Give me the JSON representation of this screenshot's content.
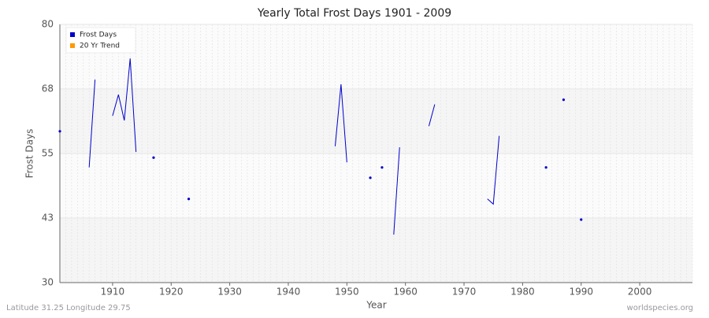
{
  "chart_data": {
    "type": "line",
    "title": "Yearly Total Frost Days 1901 - 2009",
    "x_label": "Year",
    "y_label": "Frost Days",
    "footer_left": "Latitude 31.25 Longitude 29.75",
    "footer_right": "worldspecies.org",
    "xlim": [
      1901,
      2009
    ],
    "xticks": [
      1910,
      1920,
      1930,
      1940,
      1950,
      1960,
      1970,
      1980,
      1990,
      2000
    ],
    "ylim": [
      30,
      80
    ],
    "yticks": [
      30,
      {
        "value": 42.5,
        "label": "43"
      },
      55,
      {
        "value": 67.5,
        "label": "68"
      },
      80
    ],
    "grid": true,
    "legend": "upper left",
    "x": [
      1901,
      1902,
      1903,
      1904,
      1905,
      1906,
      1907,
      1908,
      1909,
      1910,
      1911,
      1912,
      1913,
      1914,
      1915,
      1916,
      1917,
      1918,
      1919,
      1920,
      1921,
      1922,
      1923,
      1924,
      1925,
      1926,
      1927,
      1928,
      1929,
      1930,
      1931,
      1932,
      1933,
      1934,
      1935,
      1936,
      1937,
      1938,
      1939,
      1940,
      1941,
      1942,
      1943,
      1944,
      1945,
      1946,
      1947,
      1948,
      1949,
      1950,
      1951,
      1952,
      1953,
      1954,
      1955,
      1956,
      1957,
      1958,
      1959,
      1960,
      1961,
      1962,
      1963,
      1964,
      1965,
      1966,
      1967,
      1968,
      1969,
      1970,
      1971,
      1972,
      1973,
      1974,
      1975,
      1976,
      1977,
      1978,
      1979,
      1980,
      1981,
      1982,
      1983,
      1984,
      1985,
      1986,
      1987,
      1988,
      1989,
      1990,
      1991,
      1992,
      1993,
      1994,
      1995,
      1996,
      1997,
      1998,
      1999,
      2000,
      2001,
      2002,
      2003,
      2004,
      2005,
      2006,
      2007,
      2008,
      2009
    ],
    "series": [
      {
        "name": "Frost Days",
        "color": "#0000cc",
        "values": [
          59.3,
          null,
          null,
          null,
          null,
          52.3,
          69.3,
          null,
          null,
          62.3,
          66.4,
          61.4,
          73.4,
          55.3,
          null,
          null,
          54.2,
          null,
          null,
          null,
          null,
          null,
          46.2,
          null,
          null,
          null,
          null,
          null,
          null,
          null,
          null,
          null,
          null,
          null,
          null,
          null,
          null,
          null,
          null,
          null,
          null,
          null,
          null,
          null,
          null,
          null,
          null,
          56.4,
          68.4,
          53.3,
          null,
          null,
          null,
          50.3,
          null,
          52.3,
          null,
          39.3,
          56.2,
          null,
          null,
          null,
          null,
          60.3,
          64.5,
          null,
          null,
          null,
          null,
          null,
          null,
          null,
          null,
          46.2,
          45.2,
          58.4,
          null,
          null,
          null,
          null,
          null,
          null,
          null,
          52.3,
          null,
          null,
          65.4,
          null,
          null,
          42.2,
          null,
          null,
          null,
          null,
          null,
          null,
          null,
          null,
          null,
          null,
          null,
          null,
          null,
          null,
          null,
          null,
          null,
          null,
          null
        ]
      },
      {
        "name": "20 Yr Trend",
        "color": "#ff9900",
        "values": [
          null,
          null,
          null,
          null,
          null,
          null,
          null,
          null,
          null,
          null,
          null,
          null,
          null,
          null,
          null,
          null,
          null,
          null,
          null,
          null,
          null,
          null,
          null,
          null,
          null,
          null,
          null,
          null,
          null,
          null,
          null,
          null,
          null,
          null,
          null,
          null,
          null,
          null,
          null,
          null,
          null,
          null,
          null,
          null,
          null,
          null,
          null,
          null,
          null,
          null,
          null,
          null,
          null,
          null,
          null,
          null,
          null,
          null,
          null,
          null,
          null,
          null,
          null,
          null,
          null,
          null,
          null,
          null,
          null,
          null,
          null,
          null,
          null,
          null,
          null,
          null,
          null,
          null,
          null,
          null,
          null,
          null,
          null,
          null,
          null,
          null,
          null,
          null,
          null,
          null,
          null,
          null,
          null,
          null,
          null,
          null,
          null,
          null,
          null,
          null,
          null,
          null,
          null,
          null,
          null,
          null,
          null,
          null,
          null
        ]
      }
    ]
  }
}
